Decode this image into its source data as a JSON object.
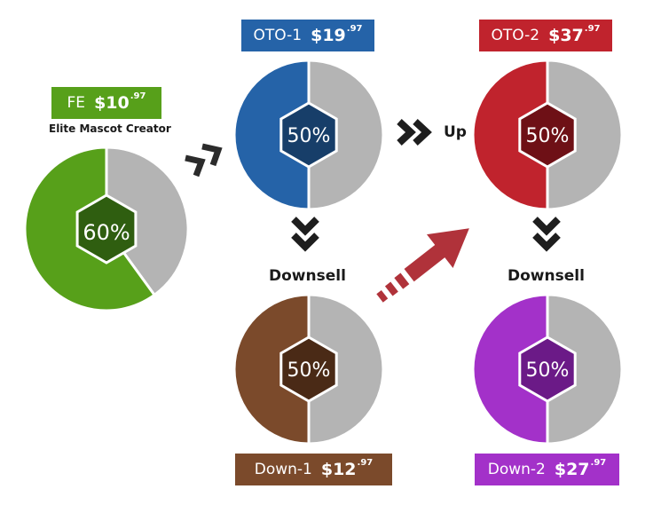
{
  "colors": {
    "fe": "#57a01a",
    "oto1": "#2563a8",
    "oto2": "#c0232d",
    "down1": "#7b4a2b",
    "down2": "#a331c9",
    "remainder": "#b4b4b4",
    "arrow_dark": "#2b2b2b",
    "arrow_red": "#b0323a"
  },
  "nodes": {
    "fe": {
      "name": "FE",
      "price_dollars": "$10",
      "price_cents": ".97",
      "subtitle": "Elite Mascot Creator",
      "percent_label": "60%",
      "percent": 60
    },
    "oto1": {
      "name": "OTO-1",
      "price_dollars": "$19",
      "price_cents": ".97",
      "percent_label": "50%",
      "percent": 50
    },
    "oto2": {
      "name": "OTO-2",
      "price_dollars": "$37",
      "price_cents": ".97",
      "percent_label": "50%",
      "percent": 50
    },
    "down1": {
      "name": "Down-1",
      "price_dollars": "$12",
      "price_cents": ".97",
      "percent_label": "50%",
      "percent": 50
    },
    "down2": {
      "name": "Down-2",
      "price_dollars": "$27",
      "price_cents": ".97",
      "percent_label": "50%",
      "percent": 50
    }
  },
  "flow_labels": {
    "up": "Up",
    "downsell_left": "Downsell",
    "downsell_right": "Downsell"
  }
}
